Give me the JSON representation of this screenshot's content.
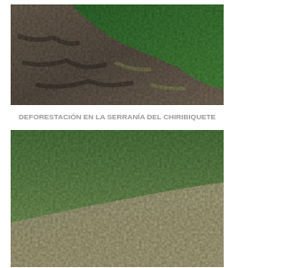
{
  "caption": "DEFORESTACIÓN EN LA SERRANÍA DEL CHIRIBIQUETE"
}
